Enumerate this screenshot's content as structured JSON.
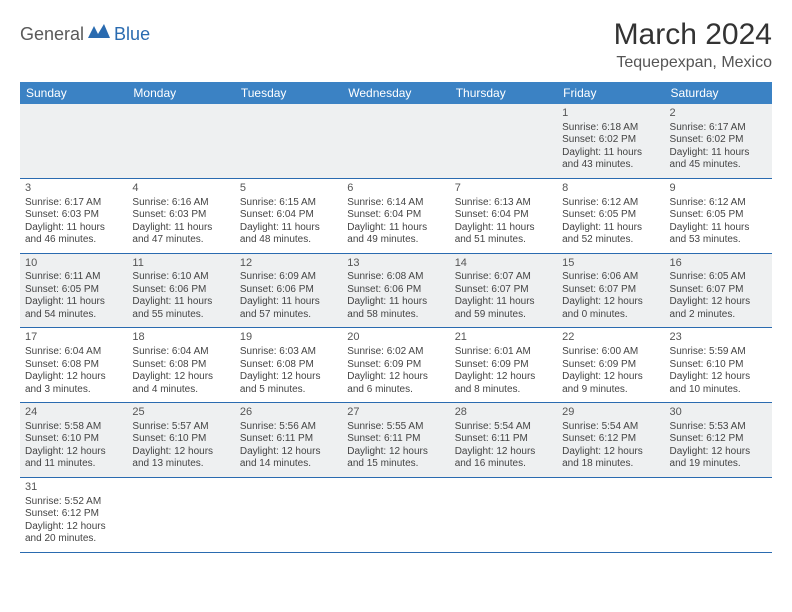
{
  "logo": {
    "part1": "General",
    "part2": "Blue"
  },
  "title": "March 2024",
  "location": "Tequepexpan, Mexico",
  "colors": {
    "header_bg": "#3b82c4",
    "row_alt_bg": "#eef0f1",
    "row_border": "#2a6bb0",
    "logo_accent": "#2a6bb0"
  },
  "weekdays": [
    "Sunday",
    "Monday",
    "Tuesday",
    "Wednesday",
    "Thursday",
    "Friday",
    "Saturday"
  ],
  "weeks": [
    [
      null,
      null,
      null,
      null,
      null,
      {
        "n": "1",
        "sr": "Sunrise: 6:18 AM",
        "ss": "Sunset: 6:02 PM",
        "dl": "Daylight: 11 hours and 43 minutes."
      },
      {
        "n": "2",
        "sr": "Sunrise: 6:17 AM",
        "ss": "Sunset: 6:02 PM",
        "dl": "Daylight: 11 hours and 45 minutes."
      }
    ],
    [
      {
        "n": "3",
        "sr": "Sunrise: 6:17 AM",
        "ss": "Sunset: 6:03 PM",
        "dl": "Daylight: 11 hours and 46 minutes."
      },
      {
        "n": "4",
        "sr": "Sunrise: 6:16 AM",
        "ss": "Sunset: 6:03 PM",
        "dl": "Daylight: 11 hours and 47 minutes."
      },
      {
        "n": "5",
        "sr": "Sunrise: 6:15 AM",
        "ss": "Sunset: 6:04 PM",
        "dl": "Daylight: 11 hours and 48 minutes."
      },
      {
        "n": "6",
        "sr": "Sunrise: 6:14 AM",
        "ss": "Sunset: 6:04 PM",
        "dl": "Daylight: 11 hours and 49 minutes."
      },
      {
        "n": "7",
        "sr": "Sunrise: 6:13 AM",
        "ss": "Sunset: 6:04 PM",
        "dl": "Daylight: 11 hours and 51 minutes."
      },
      {
        "n": "8",
        "sr": "Sunrise: 6:12 AM",
        "ss": "Sunset: 6:05 PM",
        "dl": "Daylight: 11 hours and 52 minutes."
      },
      {
        "n": "9",
        "sr": "Sunrise: 6:12 AM",
        "ss": "Sunset: 6:05 PM",
        "dl": "Daylight: 11 hours and 53 minutes."
      }
    ],
    [
      {
        "n": "10",
        "sr": "Sunrise: 6:11 AM",
        "ss": "Sunset: 6:05 PM",
        "dl": "Daylight: 11 hours and 54 minutes."
      },
      {
        "n": "11",
        "sr": "Sunrise: 6:10 AM",
        "ss": "Sunset: 6:06 PM",
        "dl": "Daylight: 11 hours and 55 minutes."
      },
      {
        "n": "12",
        "sr": "Sunrise: 6:09 AM",
        "ss": "Sunset: 6:06 PM",
        "dl": "Daylight: 11 hours and 57 minutes."
      },
      {
        "n": "13",
        "sr": "Sunrise: 6:08 AM",
        "ss": "Sunset: 6:06 PM",
        "dl": "Daylight: 11 hours and 58 minutes."
      },
      {
        "n": "14",
        "sr": "Sunrise: 6:07 AM",
        "ss": "Sunset: 6:07 PM",
        "dl": "Daylight: 11 hours and 59 minutes."
      },
      {
        "n": "15",
        "sr": "Sunrise: 6:06 AM",
        "ss": "Sunset: 6:07 PM",
        "dl": "Daylight: 12 hours and 0 minutes."
      },
      {
        "n": "16",
        "sr": "Sunrise: 6:05 AM",
        "ss": "Sunset: 6:07 PM",
        "dl": "Daylight: 12 hours and 2 minutes."
      }
    ],
    [
      {
        "n": "17",
        "sr": "Sunrise: 6:04 AM",
        "ss": "Sunset: 6:08 PM",
        "dl": "Daylight: 12 hours and 3 minutes."
      },
      {
        "n": "18",
        "sr": "Sunrise: 6:04 AM",
        "ss": "Sunset: 6:08 PM",
        "dl": "Daylight: 12 hours and 4 minutes."
      },
      {
        "n": "19",
        "sr": "Sunrise: 6:03 AM",
        "ss": "Sunset: 6:08 PM",
        "dl": "Daylight: 12 hours and 5 minutes."
      },
      {
        "n": "20",
        "sr": "Sunrise: 6:02 AM",
        "ss": "Sunset: 6:09 PM",
        "dl": "Daylight: 12 hours and 6 minutes."
      },
      {
        "n": "21",
        "sr": "Sunrise: 6:01 AM",
        "ss": "Sunset: 6:09 PM",
        "dl": "Daylight: 12 hours and 8 minutes."
      },
      {
        "n": "22",
        "sr": "Sunrise: 6:00 AM",
        "ss": "Sunset: 6:09 PM",
        "dl": "Daylight: 12 hours and 9 minutes."
      },
      {
        "n": "23",
        "sr": "Sunrise: 5:59 AM",
        "ss": "Sunset: 6:10 PM",
        "dl": "Daylight: 12 hours and 10 minutes."
      }
    ],
    [
      {
        "n": "24",
        "sr": "Sunrise: 5:58 AM",
        "ss": "Sunset: 6:10 PM",
        "dl": "Daylight: 12 hours and 11 minutes."
      },
      {
        "n": "25",
        "sr": "Sunrise: 5:57 AM",
        "ss": "Sunset: 6:10 PM",
        "dl": "Daylight: 12 hours and 13 minutes."
      },
      {
        "n": "26",
        "sr": "Sunrise: 5:56 AM",
        "ss": "Sunset: 6:11 PM",
        "dl": "Daylight: 12 hours and 14 minutes."
      },
      {
        "n": "27",
        "sr": "Sunrise: 5:55 AM",
        "ss": "Sunset: 6:11 PM",
        "dl": "Daylight: 12 hours and 15 minutes."
      },
      {
        "n": "28",
        "sr": "Sunrise: 5:54 AM",
        "ss": "Sunset: 6:11 PM",
        "dl": "Daylight: 12 hours and 16 minutes."
      },
      {
        "n": "29",
        "sr": "Sunrise: 5:54 AM",
        "ss": "Sunset: 6:12 PM",
        "dl": "Daylight: 12 hours and 18 minutes."
      },
      {
        "n": "30",
        "sr": "Sunrise: 5:53 AM",
        "ss": "Sunset: 6:12 PM",
        "dl": "Daylight: 12 hours and 19 minutes."
      }
    ],
    [
      {
        "n": "31",
        "sr": "Sunrise: 5:52 AM",
        "ss": "Sunset: 6:12 PM",
        "dl": "Daylight: 12 hours and 20 minutes."
      },
      null,
      null,
      null,
      null,
      null,
      null
    ]
  ]
}
